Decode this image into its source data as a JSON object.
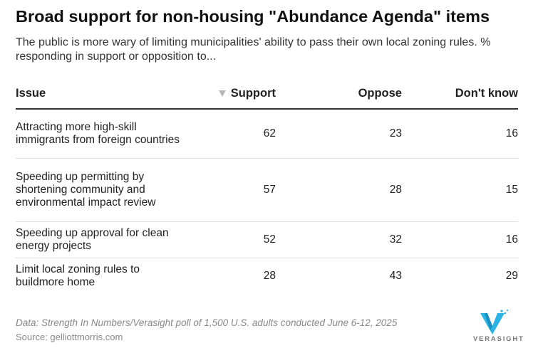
{
  "title": "Broad support for non-housing \"Abundance Agenda\" items",
  "subtitle": "The public is more wary of limiting municipalities' ability to pass their own local zoning rules. % responding in support or opposition to...",
  "table": {
    "headers": {
      "issue": "Issue",
      "support": "Support",
      "oppose": "Oppose",
      "dont_know": "Don't know"
    },
    "sort_icon": "sort-desc-icon",
    "rows": [
      {
        "issue": "Attracting more high-skill immigrants from foreign countries",
        "support": "62",
        "oppose": "23",
        "dont_know": "16"
      },
      {
        "issue": "Speeding up permitting by shortening community and environmental impact review",
        "support": "57",
        "oppose": "28",
        "dont_know": "15"
      },
      {
        "issue": "Speeding up approval for clean energy projects",
        "support": "52",
        "oppose": "32",
        "dont_know": "16"
      },
      {
        "issue": "Limit local zoning rules to buildmore home",
        "support": "28",
        "oppose": "43",
        "dont_know": "29"
      }
    ]
  },
  "chart_data": {
    "type": "table",
    "title": "Broad support for non-housing \"Abundance Agenda\" items",
    "columns": [
      "Issue",
      "Support",
      "Oppose",
      "Don't know"
    ],
    "rows": [
      [
        "Attracting more high-skill immigrants from foreign countries",
        62,
        23,
        16
      ],
      [
        "Speeding up permitting by shortening community and environmental impact review",
        57,
        28,
        15
      ],
      [
        "Speeding up approval for clean energy projects",
        52,
        32,
        16
      ],
      [
        "Limit local zoning rules to buildmore home",
        28,
        43,
        29
      ]
    ]
  },
  "footer": {
    "note": "Data: Strength In Numbers/Verasight poll of 1,500 U.S. adults conducted June 6-12, 2025",
    "source": "Source: gelliottmorris.com",
    "logo_text": "VERASIGHT",
    "logo_color": "#2bb3e6"
  }
}
